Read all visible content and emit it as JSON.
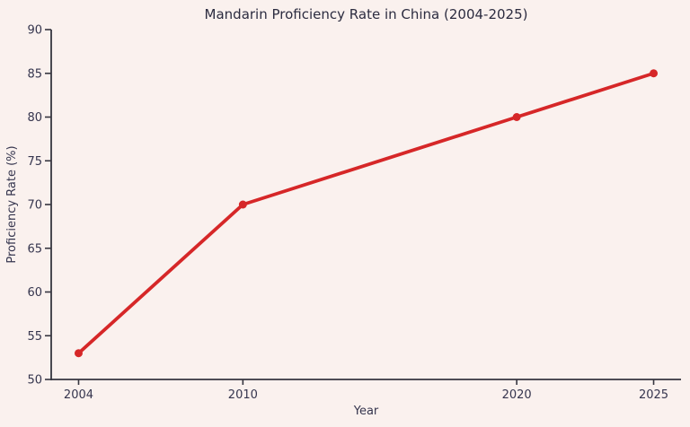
{
  "page": {
    "background": "#faf1ee"
  },
  "chart_data": {
    "type": "line",
    "title": "Mandarin Proficiency Rate in China (2004-2025)",
    "xlabel": "Year",
    "ylabel": "Proficiency Rate (%)",
    "x": [
      2004,
      2010,
      2020,
      2025
    ],
    "values": [
      53,
      70,
      80,
      85
    ],
    "xticks": [
      2004,
      2010,
      2020,
      2025
    ],
    "yticks": [
      50,
      55,
      60,
      65,
      70,
      75,
      80,
      85,
      90
    ],
    "xlim": [
      2003,
      2026
    ],
    "ylim": [
      50,
      90
    ],
    "grid": false,
    "legend": "none",
    "marker": "circle",
    "line_color": "#d62728",
    "text_color": "#35354e",
    "title_color": "#2c2c40",
    "spine_color": "#35353f"
  }
}
